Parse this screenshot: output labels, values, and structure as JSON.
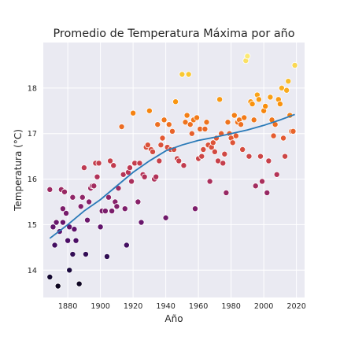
{
  "chart_data": {
    "type": "scatter",
    "title": "Promedio de Temperatura Máxima por año",
    "xlabel": "Año",
    "ylabel": "Temperatura (°C)",
    "xlim": [
      1865,
      2025
    ],
    "ylim": [
      13.4,
      19.0
    ],
    "x_ticks": [
      1880,
      1900,
      1920,
      1940,
      1960,
      1980,
      2000,
      2020
    ],
    "y_ticks": [
      14,
      15,
      16,
      17,
      18
    ],
    "grid": true,
    "legend": "none",
    "colormap": "inferno",
    "colors": {
      "plot_background": "#EAEAF2",
      "grid": "#FFFFFF",
      "trend_line": "#2A7AB8",
      "point_edge": "#FFFFFF"
    },
    "points": [
      [
        1869,
        13.85
      ],
      [
        1869,
        15.77
      ],
      [
        1871,
        14.95
      ],
      [
        1872,
        14.55
      ],
      [
        1873,
        15.05
      ],
      [
        1874,
        13.65
      ],
      [
        1875,
        14.85
      ],
      [
        1876,
        15.77
      ],
      [
        1877,
        15.35
      ],
      [
        1877,
        15.05
      ],
      [
        1878,
        15.72
      ],
      [
        1879,
        15.25
      ],
      [
        1880,
        14.65
      ],
      [
        1881,
        14.0
      ],
      [
        1881,
        14.95
      ],
      [
        1883,
        15.6
      ],
      [
        1883,
        14.35
      ],
      [
        1884,
        14.9
      ],
      [
        1885,
        14.65
      ],
      [
        1887,
        13.7
      ],
      [
        1888,
        15.4
      ],
      [
        1889,
        15.6
      ],
      [
        1890,
        16.25
      ],
      [
        1891,
        14.35
      ],
      [
        1892,
        15.1
      ],
      [
        1893,
        15.5
      ],
      [
        1894,
        15.8
      ],
      [
        1895,
        15.85
      ],
      [
        1896,
        15.85
      ],
      [
        1897,
        16.35
      ],
      [
        1898,
        16.05
      ],
      [
        1899,
        16.35
      ],
      [
        1900,
        14.95
      ],
      [
        1901,
        15.3
      ],
      [
        1903,
        15.3
      ],
      [
        1904,
        14.3
      ],
      [
        1905,
        15.6
      ],
      [
        1906,
        16.4
      ],
      [
        1907,
        15.3
      ],
      [
        1908,
        16.3
      ],
      [
        1909,
        15.5
      ],
      [
        1910,
        15.4
      ],
      [
        1911,
        15.8
      ],
      [
        1913,
        17.15
      ],
      [
        1914,
        16.1
      ],
      [
        1915,
        15.35
      ],
      [
        1916,
        14.55
      ],
      [
        1917,
        16.15
      ],
      [
        1918,
        16.25
      ],
      [
        1919,
        15.95
      ],
      [
        1920,
        17.45
      ],
      [
        1921,
        16.35
      ],
      [
        1923,
        15.5
      ],
      [
        1924,
        16.35
      ],
      [
        1925,
        15.05
      ],
      [
        1926,
        16.1
      ],
      [
        1927,
        16.05
      ],
      [
        1928,
        16.7
      ],
      [
        1929,
        16.75
      ],
      [
        1930,
        17.5
      ],
      [
        1931,
        16.65
      ],
      [
        1932,
        16.6
      ],
      [
        1933,
        16.0
      ],
      [
        1934,
        16.05
      ],
      [
        1935,
        17.2
      ],
      [
        1936,
        16.4
      ],
      [
        1937,
        16.75
      ],
      [
        1938,
        16.9
      ],
      [
        1939,
        17.3
      ],
      [
        1940,
        15.15
      ],
      [
        1941,
        16.7
      ],
      [
        1942,
        17.2
      ],
      [
        1943,
        16.65
      ],
      [
        1944,
        17.05
      ],
      [
        1945,
        16.65
      ],
      [
        1946,
        17.7
      ],
      [
        1947,
        16.45
      ],
      [
        1948,
        16.4
      ],
      [
        1950,
        18.3
      ],
      [
        1951,
        16.3
      ],
      [
        1952,
        17.25
      ],
      [
        1953,
        17.4
      ],
      [
        1954,
        18.3
      ],
      [
        1955,
        17.2
      ],
      [
        1956,
        17.0
      ],
      [
        1957,
        17.3
      ],
      [
        1958,
        15.35
      ],
      [
        1959,
        17.35
      ],
      [
        1960,
        16.45
      ],
      [
        1961,
        17.1
      ],
      [
        1962,
        16.5
      ],
      [
        1963,
        16.65
      ],
      [
        1964,
        17.1
      ],
      [
        1965,
        17.25
      ],
      [
        1966,
        16.75
      ],
      [
        1967,
        15.95
      ],
      [
        1968,
        16.7
      ],
      [
        1969,
        16.8
      ],
      [
        1970,
        16.6
      ],
      [
        1971,
        16.9
      ],
      [
        1972,
        16.4
      ],
      [
        1973,
        17.75
      ],
      [
        1974,
        17.0
      ],
      [
        1975,
        16.35
      ],
      [
        1976,
        16.55
      ],
      [
        1977,
        15.7
      ],
      [
        1978,
        17.25
      ],
      [
        1979,
        17.0
      ],
      [
        1980,
        16.9
      ],
      [
        1981,
        16.8
      ],
      [
        1982,
        17.4
      ],
      [
        1983,
        16.95
      ],
      [
        1984,
        17.25
      ],
      [
        1985,
        17.3
      ],
      [
        1986,
        17.2
      ],
      [
        1987,
        16.65
      ],
      [
        1988,
        17.35
      ],
      [
        1989,
        18.6
      ],
      [
        1990,
        18.7
      ],
      [
        1991,
        16.5
      ],
      [
        1992,
        17.7
      ],
      [
        1993,
        17.65
      ],
      [
        1994,
        17.3
      ],
      [
        1995,
        15.85
      ],
      [
        1996,
        17.85
      ],
      [
        1997,
        17.75
      ],
      [
        1998,
        16.5
      ],
      [
        1999,
        15.95
      ],
      [
        2000,
        17.5
      ],
      [
        2001,
        17.6
      ],
      [
        2002,
        15.7
      ],
      [
        2003,
        16.4
      ],
      [
        2004,
        17.8
      ],
      [
        2005,
        17.3
      ],
      [
        2006,
        16.95
      ],
      [
        2007,
        17.2
      ],
      [
        2008,
        16.1
      ],
      [
        2009,
        17.75
      ],
      [
        2010,
        17.65
      ],
      [
        2011,
        18.0
      ],
      [
        2012,
        16.9
      ],
      [
        2013,
        16.5
      ],
      [
        2014,
        17.95
      ],
      [
        2015,
        18.15
      ],
      [
        2016,
        17.4
      ],
      [
        2017,
        17.05
      ],
      [
        2018,
        17.05
      ],
      [
        2019,
        18.5
      ]
    ],
    "trend_line": {
      "x": [
        1869,
        1880,
        1890,
        1900,
        1910,
        1920,
        1930,
        1940,
        1950,
        1960,
        1970,
        1980,
        1990,
        2000,
        2010,
        2019
      ],
      "y": [
        14.7,
        15.0,
        15.3,
        15.55,
        15.85,
        16.15,
        16.4,
        16.62,
        16.75,
        16.85,
        16.92,
        17.0,
        17.08,
        17.18,
        17.3,
        17.42
      ]
    }
  }
}
